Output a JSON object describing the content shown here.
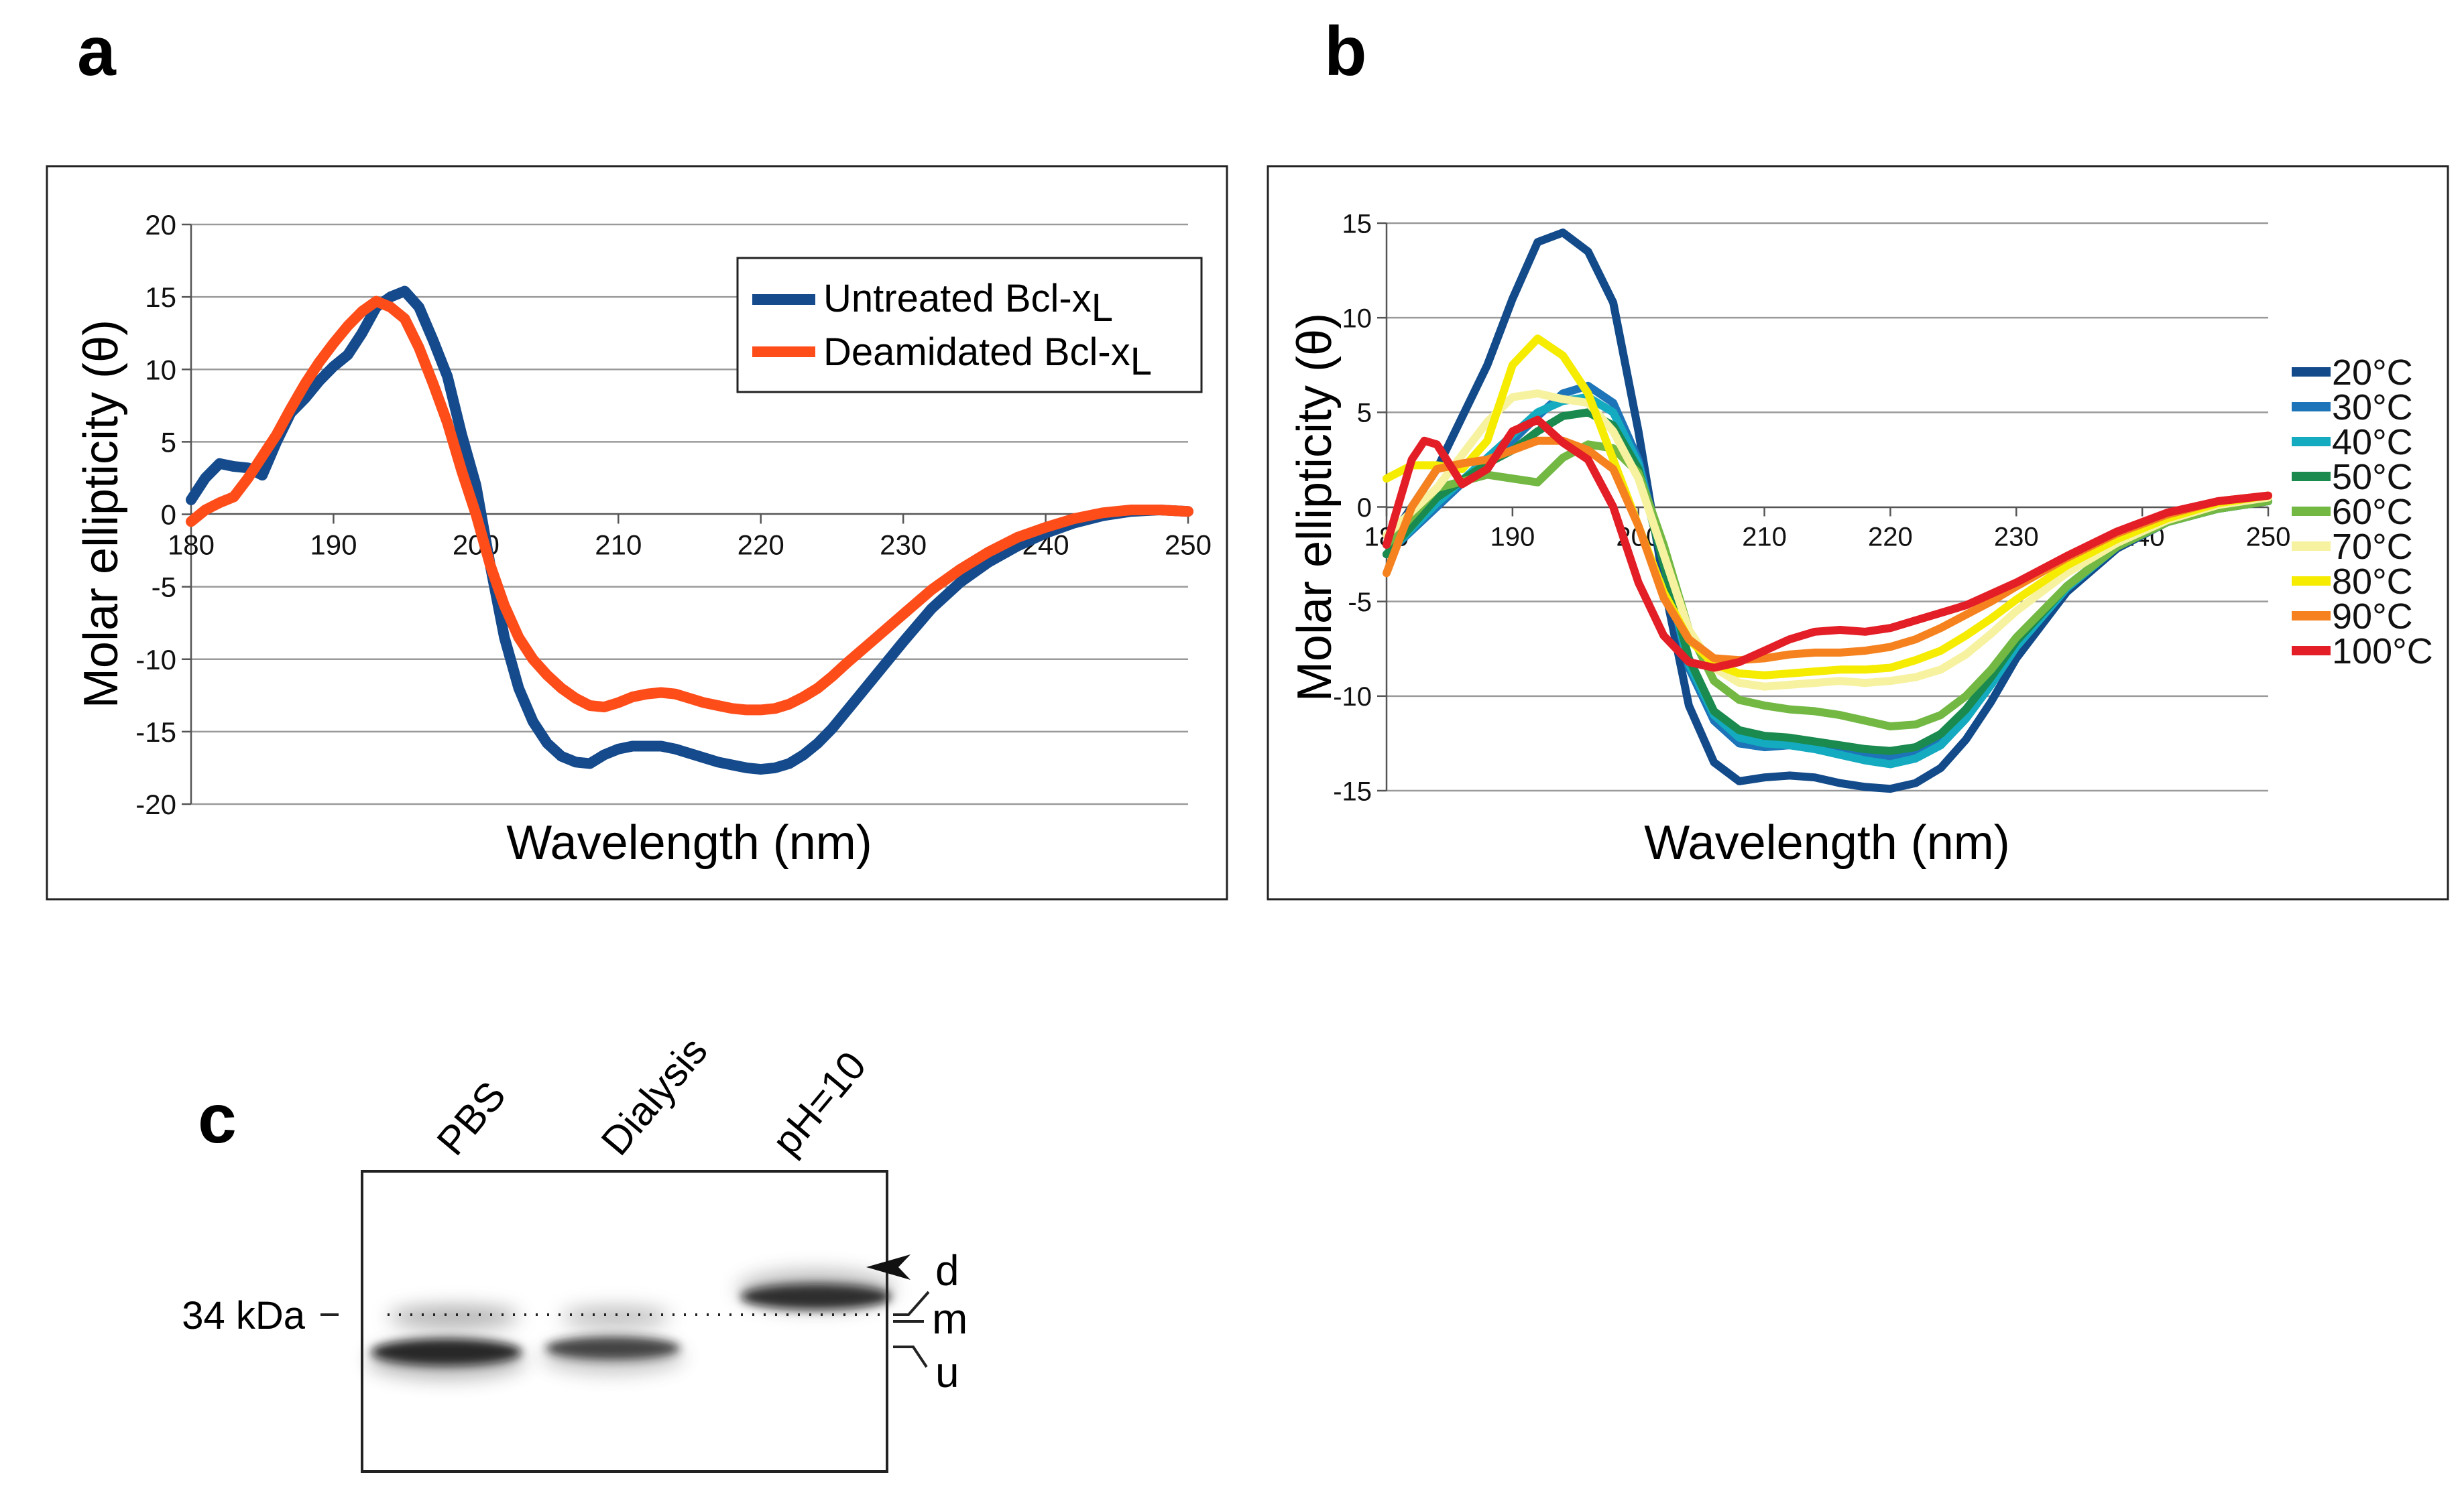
{
  "panels": {
    "a": {
      "label": "a"
    },
    "b": {
      "label": "b"
    },
    "c": {
      "label": "c"
    }
  },
  "colors": {
    "untreated": "#154a8c",
    "deamidated": "#ff4d1a",
    "grid": "#9a9a9a",
    "axis": "#555555"
  },
  "chart_data": [
    {
      "id": "panel-a",
      "type": "line",
      "title": "",
      "xlabel": "Wavelength (nm)",
      "ylabel": "Molar ellipticity (θ)",
      "xlim": [
        180,
        250
      ],
      "ylim": [
        -20,
        20
      ],
      "xticks": [
        180,
        190,
        200,
        210,
        220,
        230,
        240,
        250
      ],
      "yticks": [
        20,
        15,
        10,
        5,
        0,
        -5,
        -10,
        -15,
        -20
      ],
      "legend_position": "top-right",
      "series": [
        {
          "name": "Untreated Bcl-x",
          "subscript": "L",
          "color": "#154a8c",
          "x": [
            180,
            181,
            182,
            183,
            184,
            185,
            186,
            187,
            188,
            189,
            190,
            191,
            192,
            193,
            194,
            195,
            196,
            197,
            198,
            199,
            200,
            201,
            202,
            203,
            204,
            205,
            206,
            207,
            208,
            209,
            210,
            211,
            212,
            213,
            214,
            215,
            216,
            217,
            218,
            219,
            220,
            221,
            222,
            223,
            224,
            225,
            226,
            228,
            230,
            232,
            234,
            236,
            238,
            240,
            242,
            244,
            246,
            248,
            250
          ],
          "y": [
            1.0,
            2.5,
            3.5,
            3.3,
            3.2,
            2.7,
            5.0,
            7.0,
            8.0,
            9.2,
            10.2,
            11.0,
            12.5,
            14.3,
            15.0,
            15.4,
            14.3,
            12.0,
            9.5,
            5.5,
            2.0,
            -3.5,
            -8.5,
            -12.0,
            -14.3,
            -15.8,
            -16.7,
            -17.1,
            -17.2,
            -16.6,
            -16.2,
            -16.0,
            -16.0,
            -16.0,
            -16.2,
            -16.5,
            -16.8,
            -17.1,
            -17.3,
            -17.5,
            -17.6,
            -17.5,
            -17.2,
            -16.6,
            -15.8,
            -14.8,
            -13.6,
            -11.2,
            -8.8,
            -6.5,
            -4.7,
            -3.3,
            -2.2,
            -1.3,
            -0.6,
            -0.1,
            0.2,
            0.3,
            0.2
          ]
        },
        {
          "name": "Deamidated Bcl-x",
          "subscript": "L",
          "color": "#ff4d1a",
          "x": [
            180,
            181,
            182,
            183,
            184,
            185,
            186,
            187,
            188,
            189,
            190,
            191,
            192,
            193,
            194,
            195,
            196,
            197,
            198,
            199,
            200,
            201,
            202,
            203,
            204,
            205,
            206,
            207,
            208,
            209,
            210,
            211,
            212,
            213,
            214,
            215,
            216,
            217,
            218,
            219,
            220,
            221,
            222,
            223,
            224,
            225,
            226,
            228,
            230,
            232,
            234,
            236,
            238,
            240,
            242,
            244,
            246,
            248,
            250
          ],
          "y": [
            -0.5,
            0.3,
            0.8,
            1.2,
            2.5,
            4.0,
            5.5,
            7.3,
            9.0,
            10.5,
            11.8,
            13.0,
            14.0,
            14.7,
            14.3,
            13.5,
            11.5,
            9.0,
            6.3,
            3.0,
            0.0,
            -3.5,
            -6.3,
            -8.5,
            -10.0,
            -11.1,
            -12.0,
            -12.7,
            -13.2,
            -13.3,
            -13.0,
            -12.6,
            -12.4,
            -12.3,
            -12.4,
            -12.7,
            -13.0,
            -13.2,
            -13.4,
            -13.5,
            -13.5,
            -13.4,
            -13.1,
            -12.6,
            -12.0,
            -11.2,
            -10.3,
            -8.6,
            -6.9,
            -5.2,
            -3.8,
            -2.6,
            -1.6,
            -0.9,
            -0.3,
            0.1,
            0.3,
            0.3,
            0.2
          ]
        }
      ]
    },
    {
      "id": "panel-b",
      "type": "line",
      "title": "",
      "xlabel": "Wavelength (nm)",
      "ylabel": "Molar ellipticity (θ)",
      "xlim": [
        180,
        250
      ],
      "ylim": [
        -15,
        15
      ],
      "xticks": [
        180,
        190,
        200,
        210,
        220,
        230,
        240,
        250
      ],
      "yticks": [
        15,
        10,
        5,
        0,
        -5,
        -10,
        -15
      ],
      "legend_position": "right",
      "series": [
        {
          "name": "20°C",
          "color": "#124a8a",
          "x": [
            180,
            184,
            188,
            190,
            192,
            194,
            196,
            198,
            200,
            202,
            204,
            206,
            208,
            210,
            212,
            214,
            216,
            218,
            220,
            222,
            224,
            226,
            228,
            230,
            234,
            238,
            242,
            246,
            250
          ],
          "y": [
            -2.0,
            2.0,
            7.5,
            11.0,
            14.0,
            14.5,
            13.5,
            10.8,
            4.0,
            -4.0,
            -10.5,
            -13.5,
            -14.5,
            -14.3,
            -14.2,
            -14.3,
            -14.6,
            -14.8,
            -14.9,
            -14.6,
            -13.8,
            -12.3,
            -10.3,
            -8.0,
            -4.5,
            -2.2,
            -0.8,
            -0.1,
            0.3
          ]
        },
        {
          "name": "30°C",
          "color": "#1d74b8",
          "x": [
            180,
            184,
            188,
            190,
            192,
            194,
            196,
            198,
            200,
            202,
            204,
            206,
            208,
            210,
            212,
            214,
            216,
            218,
            220,
            222,
            224,
            226,
            228,
            230,
            234,
            238,
            242,
            246,
            250
          ],
          "y": [
            -2.5,
            0.0,
            2.5,
            3.5,
            4.8,
            6.0,
            6.4,
            5.5,
            2.5,
            -3.0,
            -8.5,
            -11.3,
            -12.5,
            -12.7,
            -12.6,
            -12.7,
            -12.9,
            -13.1,
            -13.2,
            -13.0,
            -12.3,
            -11.0,
            -9.2,
            -7.3,
            -4.2,
            -2.1,
            -0.8,
            -0.1,
            0.3
          ]
        },
        {
          "name": "40°C",
          "color": "#14aabf",
          "x": [
            180,
            184,
            188,
            190,
            192,
            194,
            196,
            198,
            200,
            202,
            204,
            206,
            208,
            210,
            212,
            214,
            216,
            218,
            220,
            222,
            224,
            226,
            228,
            230,
            234,
            238,
            242,
            246,
            250
          ],
          "y": [
            -2.5,
            0.2,
            2.6,
            3.8,
            5.0,
            5.6,
            5.8,
            5.0,
            2.3,
            -3.0,
            -8.3,
            -11.0,
            -12.2,
            -12.5,
            -12.6,
            -12.8,
            -13.1,
            -13.4,
            -13.6,
            -13.3,
            -12.6,
            -11.2,
            -9.4,
            -7.4,
            -4.3,
            -2.1,
            -0.8,
            -0.1,
            0.3
          ]
        },
        {
          "name": "50°C",
          "color": "#1a8a4e",
          "x": [
            180,
            184,
            188,
            190,
            192,
            194,
            196,
            198,
            200,
            202,
            204,
            206,
            208,
            210,
            212,
            214,
            216,
            218,
            220,
            222,
            224,
            226,
            228,
            230,
            234,
            238,
            242,
            246,
            250
          ],
          "y": [
            -2.5,
            0.5,
            2.3,
            3.0,
            4.0,
            4.8,
            5.0,
            4.3,
            2.0,
            -3.0,
            -8.0,
            -10.8,
            -11.8,
            -12.1,
            -12.2,
            -12.4,
            -12.6,
            -12.8,
            -12.9,
            -12.7,
            -12.0,
            -10.7,
            -9.0,
            -7.1,
            -4.2,
            -2.1,
            -0.8,
            -0.1,
            0.3
          ]
        },
        {
          "name": "60°C",
          "color": "#72b843",
          "x": [
            180,
            184,
            188,
            190,
            192,
            194,
            196,
            198,
            200,
            202,
            204,
            206,
            208,
            210,
            212,
            214,
            216,
            218,
            220,
            222,
            224,
            226,
            228,
            230,
            234,
            238,
            242,
            246,
            250
          ],
          "y": [
            -2.0,
            1.0,
            1.7,
            1.5,
            1.3,
            2.6,
            3.3,
            3.1,
            1.8,
            -2.0,
            -6.5,
            -9.2,
            -10.2,
            -10.5,
            -10.7,
            -10.8,
            -11.0,
            -11.3,
            -11.6,
            -11.5,
            -11.0,
            -10.0,
            -8.6,
            -6.9,
            -4.2,
            -2.1,
            -0.8,
            -0.1,
            0.3
          ]
        },
        {
          "name": "70°C",
          "color": "#f7f2a0",
          "x": [
            180,
            184,
            188,
            190,
            192,
            194,
            196,
            198,
            200,
            202,
            204,
            206,
            208,
            210,
            212,
            214,
            216,
            218,
            220,
            222,
            224,
            226,
            228,
            230,
            234,
            238,
            242,
            246,
            250
          ],
          "y": [
            -1.5,
            1.0,
            4.5,
            5.8,
            6.0,
            5.7,
            5.5,
            4.0,
            1.5,
            -2.5,
            -6.5,
            -8.5,
            -9.3,
            -9.5,
            -9.4,
            -9.3,
            -9.2,
            -9.3,
            -9.2,
            -9.0,
            -8.6,
            -7.8,
            -6.7,
            -5.5,
            -3.5,
            -1.9,
            -0.7,
            0.1,
            0.5
          ]
        },
        {
          "name": "80°C",
          "color": "#f5ec00",
          "x": [
            180,
            182,
            184,
            186,
            188,
            190,
            192,
            194,
            196,
            198,
            200,
            202,
            204,
            206,
            208,
            210,
            212,
            214,
            216,
            218,
            220,
            222,
            224,
            226,
            228,
            230,
            234,
            238,
            242,
            246,
            250
          ],
          "y": [
            1.5,
            2.2,
            2.2,
            2.0,
            3.5,
            7.5,
            8.9,
            8.0,
            6.0,
            2.5,
            -1.0,
            -4.5,
            -7.0,
            -8.3,
            -8.8,
            -8.9,
            -8.8,
            -8.7,
            -8.6,
            -8.6,
            -8.5,
            -8.1,
            -7.6,
            -6.8,
            -5.9,
            -4.9,
            -3.1,
            -1.7,
            -0.6,
            0.2,
            0.6
          ]
        },
        {
          "name": "90°C",
          "color": "#f5821f",
          "x": [
            180,
            182,
            184,
            186,
            188,
            190,
            192,
            194,
            196,
            198,
            200,
            202,
            204,
            206,
            208,
            210,
            212,
            214,
            216,
            218,
            220,
            222,
            224,
            226,
            228,
            230,
            234,
            238,
            242,
            246,
            250
          ],
          "y": [
            -3.5,
            0.0,
            2.0,
            2.3,
            2.5,
            3.0,
            3.5,
            3.5,
            3.0,
            2.0,
            -1.0,
            -4.8,
            -7.0,
            -8.0,
            -8.1,
            -8.0,
            -7.8,
            -7.7,
            -7.7,
            -7.6,
            -7.4,
            -7.0,
            -6.4,
            -5.7,
            -5.0,
            -4.2,
            -2.7,
            -1.4,
            -0.4,
            0.3,
            0.6
          ]
        },
        {
          "name": "100°C",
          "color": "#e31e26",
          "x": [
            180,
            182,
            183,
            184,
            186,
            188,
            190,
            192,
            194,
            196,
            198,
            200,
            202,
            204,
            206,
            208,
            210,
            212,
            214,
            216,
            218,
            220,
            222,
            224,
            226,
            228,
            230,
            234,
            238,
            242,
            246,
            250
          ],
          "y": [
            -2.0,
            2.5,
            3.5,
            3.3,
            1.2,
            2.0,
            4.0,
            4.6,
            3.4,
            2.5,
            0.0,
            -4.0,
            -6.8,
            -8.2,
            -8.5,
            -8.2,
            -7.6,
            -7.0,
            -6.6,
            -6.5,
            -6.6,
            -6.4,
            -6.0,
            -5.6,
            -5.2,
            -4.6,
            -4.0,
            -2.6,
            -1.3,
            -0.3,
            0.3,
            0.6
          ]
        }
      ]
    }
  ],
  "blot": {
    "lanes": [
      "PBS",
      "Dialysis",
      "pH=10"
    ],
    "marker_label": "34 kDa",
    "band_labels": {
      "d": "d",
      "m": "m",
      "u": "u"
    }
  }
}
